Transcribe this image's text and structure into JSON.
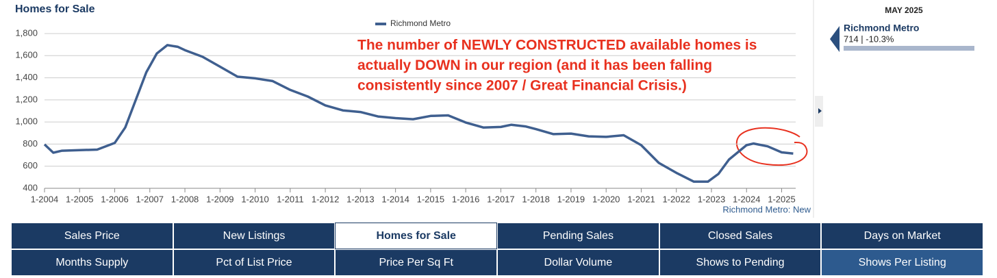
{
  "header": {
    "title": "Homes for Sale"
  },
  "chart_data": {
    "type": "line",
    "legend": "top",
    "grid": true,
    "x": [
      2004.0,
      2004.25,
      2004.5,
      2005.0,
      2005.5,
      2006.0,
      2006.3,
      2006.6,
      2006.9,
      2007.2,
      2007.5,
      2007.8,
      2008.0,
      2008.5,
      2009.0,
      2009.5,
      2010.0,
      2010.5,
      2011.0,
      2011.5,
      2012.0,
      2012.5,
      2013.0,
      2013.5,
      2014.0,
      2014.5,
      2015.0,
      2015.5,
      2016.0,
      2016.5,
      2017.0,
      2017.3,
      2017.7,
      2018.0,
      2018.5,
      2019.0,
      2019.5,
      2020.0,
      2020.5,
      2021.0,
      2021.5,
      2022.0,
      2022.5,
      2022.9,
      2023.2,
      2023.5,
      2024.0,
      2024.2,
      2024.6,
      2025.0,
      2025.33
    ],
    "series": [
      {
        "name": "Richmond Metro",
        "color": "#3f5f8f",
        "values": [
          797,
          722,
          740,
          745,
          750,
          810,
          950,
          1200,
          1450,
          1620,
          1695,
          1680,
          1650,
          1590,
          1500,
          1410,
          1395,
          1370,
          1290,
          1230,
          1150,
          1105,
          1090,
          1050,
          1035,
          1025,
          1055,
          1060,
          995,
          950,
          955,
          975,
          960,
          935,
          890,
          895,
          870,
          865,
          880,
          790,
          630,
          540,
          460,
          460,
          530,
          660,
          790,
          805,
          780,
          725,
          714
        ]
      }
    ],
    "xlim": [
      2004,
      2025.4
    ],
    "xticks": [
      {
        "value": 2004,
        "label": "1-2004"
      },
      {
        "value": 2005,
        "label": "1-2005"
      },
      {
        "value": 2006,
        "label": "1-2006"
      },
      {
        "value": 2007,
        "label": "1-2007"
      },
      {
        "value": 2008,
        "label": "1-2008"
      },
      {
        "value": 2009,
        "label": "1-2009"
      },
      {
        "value": 2010,
        "label": "1-2010"
      },
      {
        "value": 2011,
        "label": "1-2011"
      },
      {
        "value": 2012,
        "label": "1-2012"
      },
      {
        "value": 2013,
        "label": "1-2013"
      },
      {
        "value": 2014,
        "label": "1-2014"
      },
      {
        "value": 2015,
        "label": "1-2015"
      },
      {
        "value": 2016,
        "label": "1-2016"
      },
      {
        "value": 2017,
        "label": "1-2017"
      },
      {
        "value": 2018,
        "label": "1-2018"
      },
      {
        "value": 2019,
        "label": "1-2019"
      },
      {
        "value": 2020,
        "label": "1-2020"
      },
      {
        "value": 2021,
        "label": "1-2021"
      },
      {
        "value": 2022,
        "label": "1-2022"
      },
      {
        "value": 2023,
        "label": "1-2023"
      },
      {
        "value": 2024,
        "label": "1-2024"
      },
      {
        "value": 2025,
        "label": "1-2025"
      }
    ],
    "ylim": [
      400,
      1800
    ],
    "yticks": [
      400,
      600,
      800,
      {
        "value": 1000,
        "label": "1,000"
      },
      {
        "value": 1200,
        "label": "1,200"
      },
      {
        "value": 1400,
        "label": "1,400"
      },
      {
        "value": 1600,
        "label": "1,600"
      },
      {
        "value": 1800,
        "label": "1,800"
      }
    ],
    "annotation": [
      "The number of NEWLY CONSTRUCTED available homes is",
      "actually DOWN in our region (and it has been falling",
      "consistently since 2007 / Great Financial Crisis.)"
    ],
    "source": "Richmond Metro: New"
  },
  "side_panel": {
    "date": "MAY 2025",
    "name": "Richmond Metro",
    "value_text": "714 | -10.3%"
  },
  "tabs": [
    [
      {
        "label": "Sales Price"
      },
      {
        "label": "New Listings"
      },
      {
        "label": "Homes for Sale",
        "active": true
      },
      {
        "label": "Pending Sales"
      },
      {
        "label": "Closed Sales"
      },
      {
        "label": "Days on Market"
      }
    ],
    [
      {
        "label": "Months Supply"
      },
      {
        "label": "Pct of List Price"
      },
      {
        "label": "Price Per Sq Ft"
      },
      {
        "label": "Dollar Volume"
      },
      {
        "label": "Shows to Pending"
      },
      {
        "label": "Shows Per Listing",
        "highlight": true
      }
    ]
  ]
}
